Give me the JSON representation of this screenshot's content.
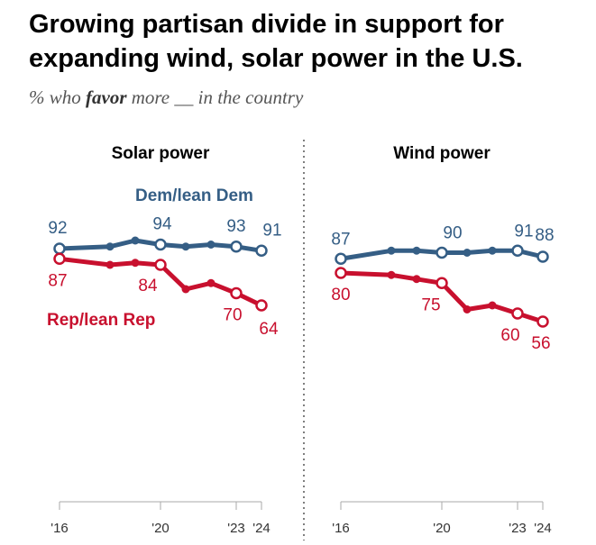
{
  "title": "Growing partisan divide in support for expanding wind, solar power in the U.S.",
  "subtitle": {
    "prefix": "% who",
    "emphasis": "favor",
    "suffix": "more __ in the country"
  },
  "colors": {
    "dem": "#355e85",
    "rep": "#c8102e"
  },
  "chart_data": {
    "type": "line",
    "years": [
      2016,
      2018,
      2019,
      2020,
      2021,
      2022,
      2023,
      2024
    ],
    "x_ticks": [
      {
        "year": 2016,
        "label": "'16"
      },
      {
        "year": 2020,
        "label": "'20"
      },
      {
        "year": 2023,
        "label": "'23"
      },
      {
        "year": 2024,
        "label": "'24"
      }
    ],
    "ylim": [
      0,
      100
    ],
    "panels": [
      {
        "name": "solar",
        "title": "Solar power",
        "series": [
          {
            "name": "Dem/lean Dem",
            "color_key": "dem",
            "show_name": true,
            "values": [
              92,
              93,
              96,
              94,
              93,
              94,
              93,
              91
            ],
            "labeled_indices": [
              0,
              3,
              6,
              7
            ],
            "labels": [
              "92",
              "94",
              "93",
              "91"
            ]
          },
          {
            "name": "Rep/lean Rep",
            "color_key": "rep",
            "show_name": true,
            "values": [
              87,
              84,
              85,
              84,
              72,
              75,
              70,
              64
            ],
            "labeled_indices": [
              0,
              3,
              6,
              7
            ],
            "labels": [
              "87",
              "84",
              "70",
              "64"
            ]
          }
        ]
      },
      {
        "name": "wind",
        "title": "Wind power",
        "series": [
          {
            "name": "Dem/lean Dem",
            "color_key": "dem",
            "show_name": false,
            "values": [
              87,
              91,
              91,
              90,
              90,
              91,
              91,
              88
            ],
            "labeled_indices": [
              0,
              3,
              6,
              7
            ],
            "labels": [
              "87",
              "90",
              "91",
              "88"
            ]
          },
          {
            "name": "Rep/lean Rep",
            "color_key": "rep",
            "show_name": false,
            "values": [
              80,
              79,
              77,
              75,
              62,
              64,
              60,
              56
            ],
            "labeled_indices": [
              0,
              3,
              6,
              7
            ],
            "labels": [
              "80",
              "75",
              "60",
              "56"
            ]
          }
        ]
      }
    ]
  }
}
